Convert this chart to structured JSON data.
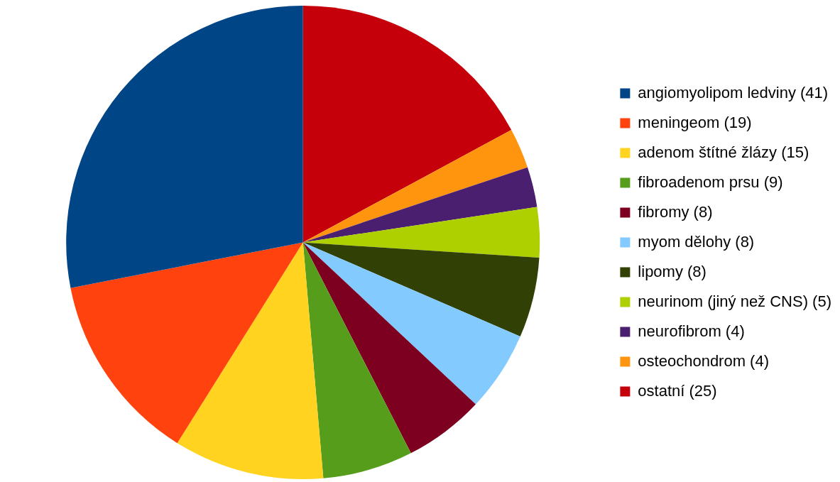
{
  "chart_data": {
    "type": "pie",
    "categories": [
      "angiomyolipom ledviny (41)",
      "meningeom (19)",
      "adenom štítné žlázy (15)",
      "fibroadenom prsu (9)",
      "fibromy (8)",
      "myom dělohy (8)",
      "lipomy (8)",
      "neurinom (jiný než CNS) (5)",
      "neurofibrom (4)",
      "osteochondrom (4)",
      "ostatní (25)"
    ],
    "values": [
      41,
      19,
      15,
      9,
      8,
      8,
      8,
      5,
      4,
      4,
      25
    ],
    "colors": [
      "#004586",
      "#ff420e",
      "#ffd320",
      "#579d1c",
      "#7e0021",
      "#83caff",
      "#314004",
      "#aecf00",
      "#4b1f6f",
      "#ff950e",
      "#c5000b"
    ],
    "legend": "right"
  }
}
